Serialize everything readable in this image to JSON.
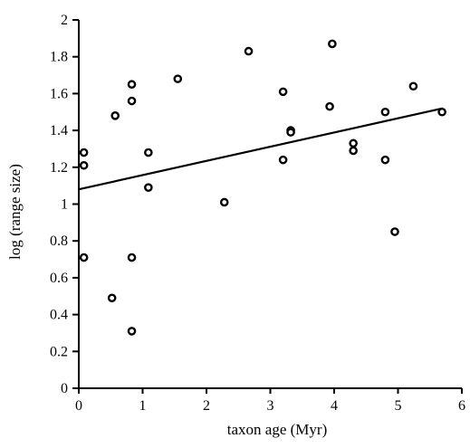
{
  "chart_data": {
    "type": "scatter",
    "title": "",
    "xlabel": "taxon age (Myr)",
    "ylabel": "log (range size)",
    "xlim": [
      0,
      6
    ],
    "ylim": [
      0,
      2
    ],
    "x_ticks": [
      "0",
      "1",
      "2",
      "3",
      "4",
      "5",
      "6"
    ],
    "y_ticks": [
      "0",
      "0.2",
      "0.4",
      "0.6",
      "0.8",
      "1",
      "1.2",
      "1.4",
      "1.6",
      "1.8",
      "2"
    ],
    "grid": false,
    "legend": "none",
    "points": [
      {
        "x": 0.08,
        "y": 1.28
      },
      {
        "x": 0.08,
        "y": 1.21
      },
      {
        "x": 0.08,
        "y": 0.71
      },
      {
        "x": 0.52,
        "y": 0.49
      },
      {
        "x": 0.57,
        "y": 1.48
      },
      {
        "x": 0.83,
        "y": 1.65
      },
      {
        "x": 0.83,
        "y": 1.56
      },
      {
        "x": 0.83,
        "y": 0.71
      },
      {
        "x": 0.83,
        "y": 0.31
      },
      {
        "x": 1.09,
        "y": 1.28
      },
      {
        "x": 1.09,
        "y": 1.09
      },
      {
        "x": 1.55,
        "y": 1.68
      },
      {
        "x": 2.28,
        "y": 1.01
      },
      {
        "x": 2.66,
        "y": 1.83
      },
      {
        "x": 3.2,
        "y": 1.61
      },
      {
        "x": 3.2,
        "y": 1.24
      },
      {
        "x": 3.32,
        "y": 1.4
      },
      {
        "x": 3.32,
        "y": 1.39
      },
      {
        "x": 3.93,
        "y": 1.53
      },
      {
        "x": 3.97,
        "y": 1.87
      },
      {
        "x": 4.3,
        "y": 1.33
      },
      {
        "x": 4.3,
        "y": 1.29
      },
      {
        "x": 4.8,
        "y": 1.5
      },
      {
        "x": 4.8,
        "y": 1.24
      },
      {
        "x": 4.95,
        "y": 0.85
      },
      {
        "x": 5.24,
        "y": 1.64
      },
      {
        "x": 5.69,
        "y": 1.5
      }
    ],
    "trendline": {
      "x": [
        0,
        5.7
      ],
      "y": [
        1.08,
        1.52
      ]
    },
    "marker_color": "#000000",
    "line_color": "#000000"
  }
}
